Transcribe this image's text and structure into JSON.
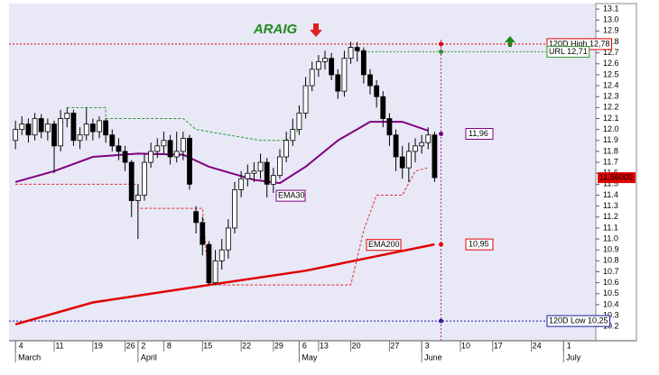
{
  "chart_data": {
    "type": "candlestick",
    "title": "ARAIG",
    "x": [
      0,
      1,
      2,
      3,
      4,
      5,
      6,
      7,
      8,
      9,
      10,
      11,
      12,
      13,
      14,
      15,
      16,
      17,
      18,
      19,
      20,
      21,
      22,
      23,
      24,
      25,
      26,
      27,
      28,
      29,
      30,
      31,
      32,
      33,
      34,
      35,
      36,
      37,
      38,
      39,
      40,
      41,
      42,
      43,
      44,
      45,
      46,
      47,
      48,
      49,
      50,
      51,
      52,
      53,
      54,
      55,
      56,
      57,
      58,
      59,
      60,
      61,
      62,
      63,
      64,
      65
    ],
    "open": [
      11.9,
      12.0,
      12.05,
      11.95,
      12.1,
      11.98,
      12.05,
      11.85,
      12.1,
      12.15,
      11.9,
      11.95,
      12.05,
      11.98,
      12.08,
      11.95,
      11.85,
      11.8,
      11.7,
      11.35,
      11.4,
      11.7,
      11.8,
      11.85,
      11.9,
      11.75,
      11.8,
      11.92,
      11.25,
      11.15,
      10.95,
      10.6,
      10.8,
      10.9,
      11.1,
      11.45,
      11.55,
      11.6,
      11.62,
      11.7,
      11.5,
      11.58,
      11.75,
      11.9,
      12.0,
      12.15,
      12.4,
      12.55,
      12.62,
      12.65,
      12.5,
      12.35,
      12.65,
      12.75,
      12.72,
      12.5,
      12.4,
      12.3,
      12.1,
      11.95,
      11.75,
      11.65,
      11.8,
      11.85,
      11.88,
      11.95
    ],
    "high": [
      12.08,
      12.12,
      12.1,
      12.15,
      12.14,
      12.1,
      12.08,
      12.18,
      12.2,
      12.18,
      12.02,
      12.2,
      12.1,
      12.12,
      12.1,
      12.0,
      11.92,
      11.85,
      11.72,
      11.5,
      11.78,
      11.88,
      11.92,
      11.98,
      11.95,
      11.98,
      11.98,
      11.95,
      11.3,
      11.2,
      10.98,
      10.9,
      11.0,
      11.18,
      11.52,
      11.62,
      11.68,
      11.7,
      11.78,
      11.74,
      11.65,
      11.82,
      11.98,
      12.1,
      12.22,
      12.48,
      12.62,
      12.68,
      12.72,
      12.7,
      12.55,
      12.72,
      12.8,
      12.8,
      12.75,
      12.55,
      12.45,
      12.35,
      12.15,
      12.0,
      11.85,
      11.88,
      11.92,
      11.95,
      12.02,
      11.98
    ],
    "low": [
      11.82,
      11.95,
      11.88,
      11.9,
      11.92,
      11.9,
      11.6,
      11.8,
      12.02,
      11.85,
      11.82,
      11.9,
      11.9,
      11.92,
      11.88,
      11.8,
      11.72,
      11.62,
      11.2,
      11.0,
      11.35,
      11.65,
      11.74,
      11.78,
      11.68,
      11.7,
      11.72,
      11.45,
      11.05,
      10.85,
      10.58,
      10.58,
      10.72,
      10.82,
      11.05,
      11.38,
      11.48,
      11.52,
      11.55,
      11.38,
      11.42,
      11.55,
      11.7,
      11.85,
      11.95,
      12.1,
      12.35,
      12.48,
      12.55,
      12.45,
      12.28,
      12.3,
      12.6,
      12.62,
      12.42,
      12.32,
      12.2,
      12.02,
      11.85,
      11.62,
      11.55,
      11.52,
      11.7,
      11.78,
      11.82,
      11.52
    ],
    "close": [
      12.0,
      12.05,
      11.95,
      12.1,
      11.98,
      12.05,
      11.85,
      12.1,
      12.15,
      11.9,
      11.95,
      12.05,
      11.98,
      12.08,
      11.95,
      11.85,
      11.8,
      11.7,
      11.35,
      11.4,
      11.7,
      11.8,
      11.85,
      11.9,
      11.75,
      11.8,
      11.92,
      11.5,
      11.15,
      10.95,
      10.6,
      10.8,
      10.9,
      11.1,
      11.45,
      11.55,
      11.6,
      11.62,
      11.7,
      11.5,
      11.58,
      11.75,
      11.9,
      12.0,
      12.15,
      12.4,
      12.55,
      12.62,
      12.65,
      12.5,
      12.35,
      12.65,
      12.75,
      12.72,
      12.5,
      12.4,
      12.3,
      12.1,
      11.95,
      11.75,
      11.65,
      11.8,
      11.85,
      11.88,
      11.95,
      11.56
    ],
    "lines": [
      {
        "name": "EMA30",
        "color": "#800080",
        "width": 2,
        "x": [
          0,
          6,
          12,
          19,
          26,
          30,
          37,
          41,
          45,
          50,
          55,
          60,
          64
        ],
        "values": [
          11.52,
          11.62,
          11.75,
          11.78,
          11.77,
          11.66,
          11.54,
          11.51,
          11.66,
          11.9,
          12.07,
          12.07,
          11.99
        ]
      },
      {
        "name": "EMA200",
        "color": "#e00000",
        "width": 2.5,
        "x": [
          0,
          12,
          30,
          45,
          55,
          65
        ],
        "values": [
          10.22,
          10.42,
          10.58,
          10.71,
          10.83,
          10.95
        ]
      },
      {
        "color": "#2a9a2a",
        "dashed": true,
        "x": [
          8,
          14,
          14,
          26,
          28,
          38,
          42,
          44
        ],
        "values": [
          12.2,
          12.2,
          12.1,
          12.1,
          12.0,
          11.9,
          11.9,
          12.0
        ]
      },
      {
        "color": "#e03030",
        "dashed": true,
        "x": [
          0,
          19,
          19,
          29,
          30,
          31,
          52,
          54,
          56,
          60,
          62,
          64
        ],
        "values": [
          11.5,
          11.5,
          11.28,
          11.28,
          10.58,
          10.58,
          10.58,
          11.08,
          11.4,
          11.4,
          11.62,
          11.65
        ]
      }
    ],
    "levels": [
      {
        "label": "120D High 12,78",
        "value": 12.78,
        "color": "#e00000",
        "from": -1
      },
      {
        "label": "URL 12,71",
        "value": 12.71,
        "color": "#2a9a2a",
        "from": 53
      },
      {
        "label": "120D Low 10,25",
        "value": 10.25,
        "color": "#1a1aa0",
        "from": -1
      }
    ],
    "end_labels": [
      {
        "label": "11,96",
        "value": 11.96,
        "color": "#800080"
      },
      {
        "label": "10,95",
        "value": 10.95,
        "color": "#e00000"
      }
    ],
    "last_price": {
      "label": "11,56000",
      "value": 11.56
    },
    "marker_x": 66,
    "xlim": [
      -1,
      90
    ],
    "ylim": [
      10.07,
      13.15
    ],
    "xticks": [
      {
        "value": 0,
        "label": "4"
      },
      {
        "value": 6,
        "label": "11"
      },
      {
        "value": 12,
        "label": "19"
      },
      {
        "value": 17,
        "label": "26"
      },
      {
        "value": 19,
        "label": "2"
      },
      {
        "value": 23,
        "label": "8"
      },
      {
        "value": 29,
        "label": "15"
      },
      {
        "value": 35,
        "label": "22"
      },
      {
        "value": 40,
        "label": "29"
      },
      {
        "value": 44,
        "label": "6"
      },
      {
        "value": 47,
        "label": "13"
      },
      {
        "value": 52,
        "label": "20"
      },
      {
        "value": 58,
        "label": "27"
      },
      {
        "value": 63,
        "label": "3"
      },
      {
        "value": 69,
        "label": "10"
      },
      {
        "value": 74,
        "label": "17"
      },
      {
        "value": 80,
        "label": "24"
      },
      {
        "value": 85,
        "label": "1"
      }
    ],
    "months": [
      {
        "value": 0,
        "label": "March"
      },
      {
        "value": 19,
        "label": "April"
      },
      {
        "value": 44,
        "label": "May"
      },
      {
        "value": 63,
        "label": "June"
      },
      {
        "value": 85,
        "label": "July"
      }
    ],
    "yticks": [
      10.2,
      10.3,
      10.4,
      10.5,
      10.6,
      10.7,
      10.8,
      10.9,
      {
        "value": 11,
        "label": "11.0"
      },
      11.1,
      11.2,
      11.3,
      11.4,
      11.5,
      11.6,
      11.7,
      11.8,
      11.9,
      {
        "value": 12,
        "label": "12.0"
      },
      12.1,
      12.2,
      12.3,
      12.4,
      12.5,
      12.6,
      12.7,
      12.8,
      12.9,
      {
        "value": 13,
        "label": "13.0"
      },
      13.1
    ]
  }
}
